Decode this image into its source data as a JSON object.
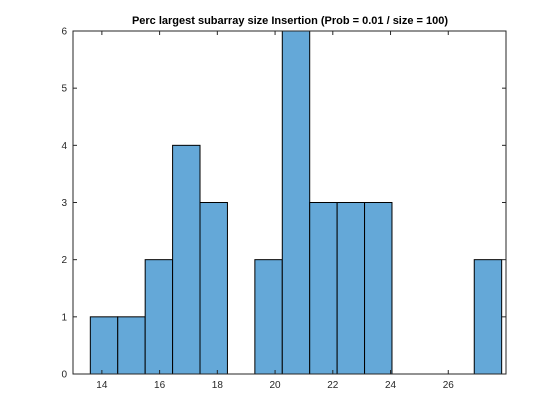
{
  "chart_data": {
    "type": "bar",
    "title": "Perc largest subarray size Insertion (Prob = 0.01 / size = 100)",
    "xlabel": "",
    "ylabel": "",
    "bin_width": 0.95,
    "bins": [
      {
        "start": 13.6,
        "count": 1
      },
      {
        "start": 14.55,
        "count": 1
      },
      {
        "start": 15.5,
        "count": 2
      },
      {
        "start": 16.45,
        "count": 4
      },
      {
        "start": 17.4,
        "count": 3
      },
      {
        "start": 18.35,
        "count": 0
      },
      {
        "start": 19.3,
        "count": 2
      },
      {
        "start": 20.25,
        "count": 6
      },
      {
        "start": 21.2,
        "count": 3
      },
      {
        "start": 22.15,
        "count": 3
      },
      {
        "start": 23.1,
        "count": 3
      },
      {
        "start": 24.05,
        "count": 0
      },
      {
        "start": 25.0,
        "count": 0
      },
      {
        "start": 25.95,
        "count": 0
      },
      {
        "start": 26.9,
        "count": 2
      }
    ],
    "xlim": [
      13,
      28
    ],
    "ylim": [
      0,
      6
    ],
    "xticks": [
      "14",
      "16",
      "18",
      "20",
      "22",
      "24",
      "26"
    ],
    "yticks": [
      "0",
      "1",
      "2",
      "3",
      "4",
      "5",
      "6"
    ],
    "bar_color": "#64a8d8",
    "edge_color": "#000000",
    "grid": false
  }
}
